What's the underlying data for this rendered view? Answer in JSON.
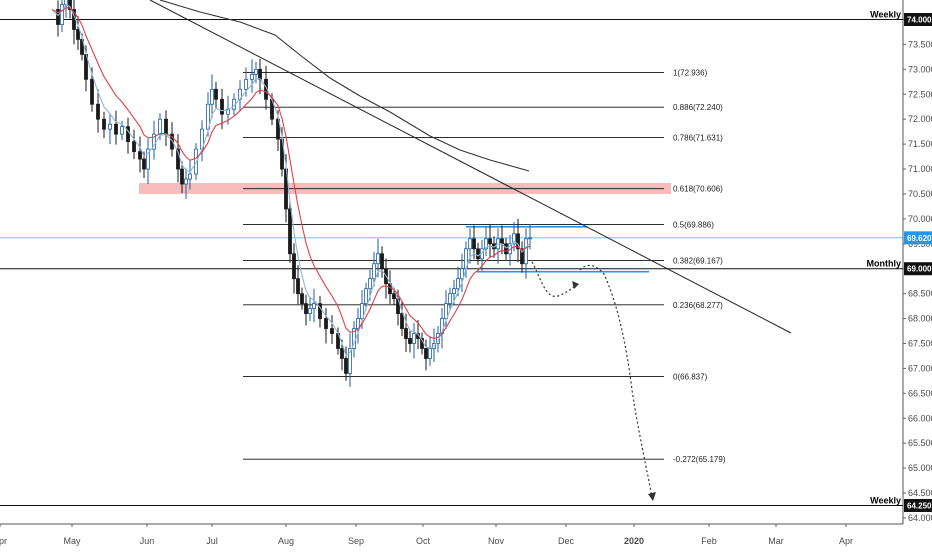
{
  "chart_data": {
    "type": "candlestick",
    "instrument_note": "",
    "x_ticks": [
      "Apr",
      "May",
      "Jun",
      "Jul",
      "Aug",
      "Sep",
      "Oct",
      "Nov",
      "Dec",
      "2020",
      "Feb",
      "Mar",
      "Apr"
    ],
    "y_ticks": [
      "74.000",
      "73.500",
      "73.000",
      "72.500",
      "72.000",
      "71.500",
      "71.000",
      "70.500",
      "70.000",
      "69.500",
      "69.000",
      "68.500",
      "68.000",
      "67.500",
      "67.000",
      "66.500",
      "66.000",
      "65.500",
      "65.000",
      "64.500",
      "64.000"
    ],
    "ylim": [
      63.85,
      74.35
    ],
    "current_price": {
      "label": "69.620",
      "value": 69.62,
      "color": "#2196f3"
    },
    "horizontal_levels": [
      {
        "tag": "Weekly",
        "value_label": "74.000",
        "value": 74.0
      },
      {
        "tag": "Monthly",
        "value_label": "69.000",
        "value": 69.0
      },
      {
        "tag": "Weekly",
        "value_label": "64.250",
        "value": 64.25
      }
    ],
    "fibonacci": [
      {
        "label": "1(72.936)",
        "value": 72.936
      },
      {
        "label": "0.886(72.240)",
        "value": 72.24
      },
      {
        "label": "0.786(71.631)",
        "value": 71.631
      },
      {
        "label": "0.618(70.606)",
        "value": 70.606
      },
      {
        "label": "0.5(69.886)",
        "value": 69.886
      },
      {
        "label": "0.382(69.167)",
        "value": 69.167
      },
      {
        "label": "0.236(68.277)",
        "value": 68.277
      },
      {
        "label": "0(66.837)",
        "value": 66.837
      },
      {
        "label": "-0.272(65.179)",
        "value": 65.179
      }
    ],
    "resistance_zone": {
      "low": 70.5,
      "high": 70.72,
      "color": "#f4a6a6"
    },
    "range_box": {
      "top": 69.84,
      "bottom": 68.94,
      "color": "#2196f3"
    },
    "series": [
      {
        "type": "candles",
        "up_color": "#1e5fa8",
        "down_color": "#1a1a1a"
      },
      {
        "type": "ema-fast",
        "color": "#8fb6dc"
      },
      {
        "type": "ema-slow",
        "color": "#e0404a"
      },
      {
        "type": "sma-long",
        "color": "#333333"
      }
    ],
    "projection": {
      "style": "dotted",
      "color": "#333333"
    }
  }
}
